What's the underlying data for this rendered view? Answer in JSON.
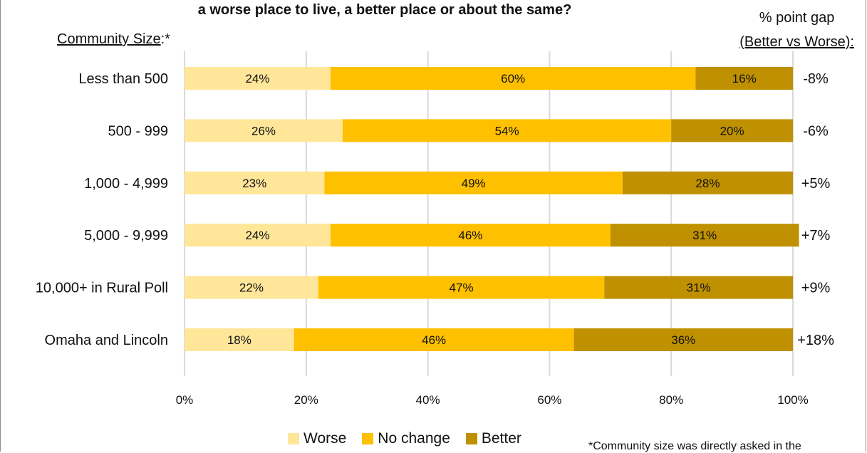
{
  "chart_data": {
    "type": "bar",
    "orientation": "horizontal",
    "stacked": true,
    "title": "a worse place to live, a better place or about the same?",
    "y_axis_heading": {
      "underlined": "Community Size",
      "suffix": ":*"
    },
    "gap_heading": {
      "line1": "% point gap",
      "line2": "(Better vs Worse):"
    },
    "categories": [
      "Less than 500",
      "500 - 999",
      "1,000 - 4,999",
      "5,000 - 9,999",
      "10,000+ in Rural Poll",
      "Omaha and Lincoln"
    ],
    "series": [
      {
        "name": "Worse",
        "color": "#ffe699",
        "values": [
          24,
          26,
          23,
          24,
          22,
          18
        ]
      },
      {
        "name": "No change",
        "color": "#ffc000",
        "values": [
          60,
          54,
          49,
          46,
          47,
          46
        ]
      },
      {
        "name": "Better",
        "color": "#bf9000",
        "values": [
          16,
          20,
          28,
          31,
          31,
          36
        ]
      }
    ],
    "point_gaps": [
      "-8%",
      "-6%",
      "+5%",
      "+7%",
      "+9%",
      "+18%"
    ],
    "xlim": [
      0,
      100
    ],
    "x_ticks": [
      "0%",
      "20%",
      "40%",
      "60%",
      "80%",
      "100%"
    ],
    "value_format": "percent",
    "grid": true,
    "legend_position": "bottom",
    "footnote": "*Community size was directly asked in the"
  }
}
